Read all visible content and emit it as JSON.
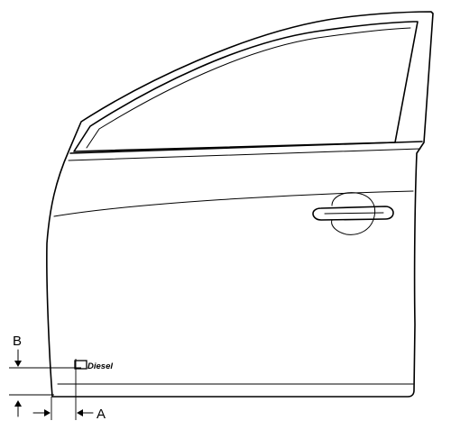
{
  "diagram": {
    "labels": {
      "dimension_a": "A",
      "dimension_b": "B",
      "emblem": "Diesel"
    }
  }
}
